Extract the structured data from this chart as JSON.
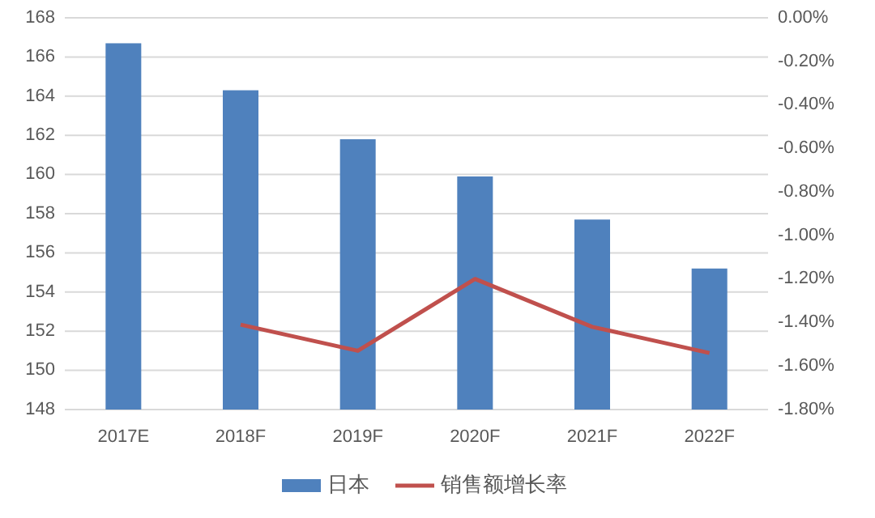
{
  "chart_data": {
    "type": "bar",
    "categories": [
      "2017E",
      "2018F",
      "2019F",
      "2020F",
      "2021F",
      "2022F"
    ],
    "series": [
      {
        "name": "日本",
        "color": "#4f81bd",
        "values": [
          166.7,
          164.3,
          161.8,
          159.9,
          157.7,
          155.2
        ]
      },
      {
        "name": "销售额增长率",
        "type": "line",
        "axis": "y2",
        "color": "#c0504d",
        "marker": "none",
        "values": [
          null,
          -1.41,
          -1.53,
          -1.2,
          -1.42,
          -1.54
        ]
      }
    ],
    "ylim": [
      148,
      168
    ],
    "yticks": [
      148,
      150,
      152,
      154,
      156,
      158,
      160,
      162,
      164,
      166,
      168
    ],
    "y2lim": [
      -1.8,
      0
    ],
    "y2ticks": [
      {
        "value": -1.8,
        "label": "-1.80%"
      },
      {
        "value": -1.6,
        "label": "-1.60%"
      },
      {
        "value": -1.4,
        "label": "-1.40%"
      },
      {
        "value": -1.2,
        "label": "-1.20%"
      },
      {
        "value": -1.0,
        "label": "-1.00%"
      },
      {
        "value": -0.8,
        "label": "-0.80%"
      },
      {
        "value": -0.6,
        "label": "-0.60%"
      },
      {
        "value": -0.4,
        "label": "-0.40%"
      },
      {
        "value": -0.2,
        "label": "-0.20%"
      },
      {
        "value": 0,
        "label": "0.00%"
      }
    ],
    "grid": "y",
    "legend": "bottom"
  }
}
